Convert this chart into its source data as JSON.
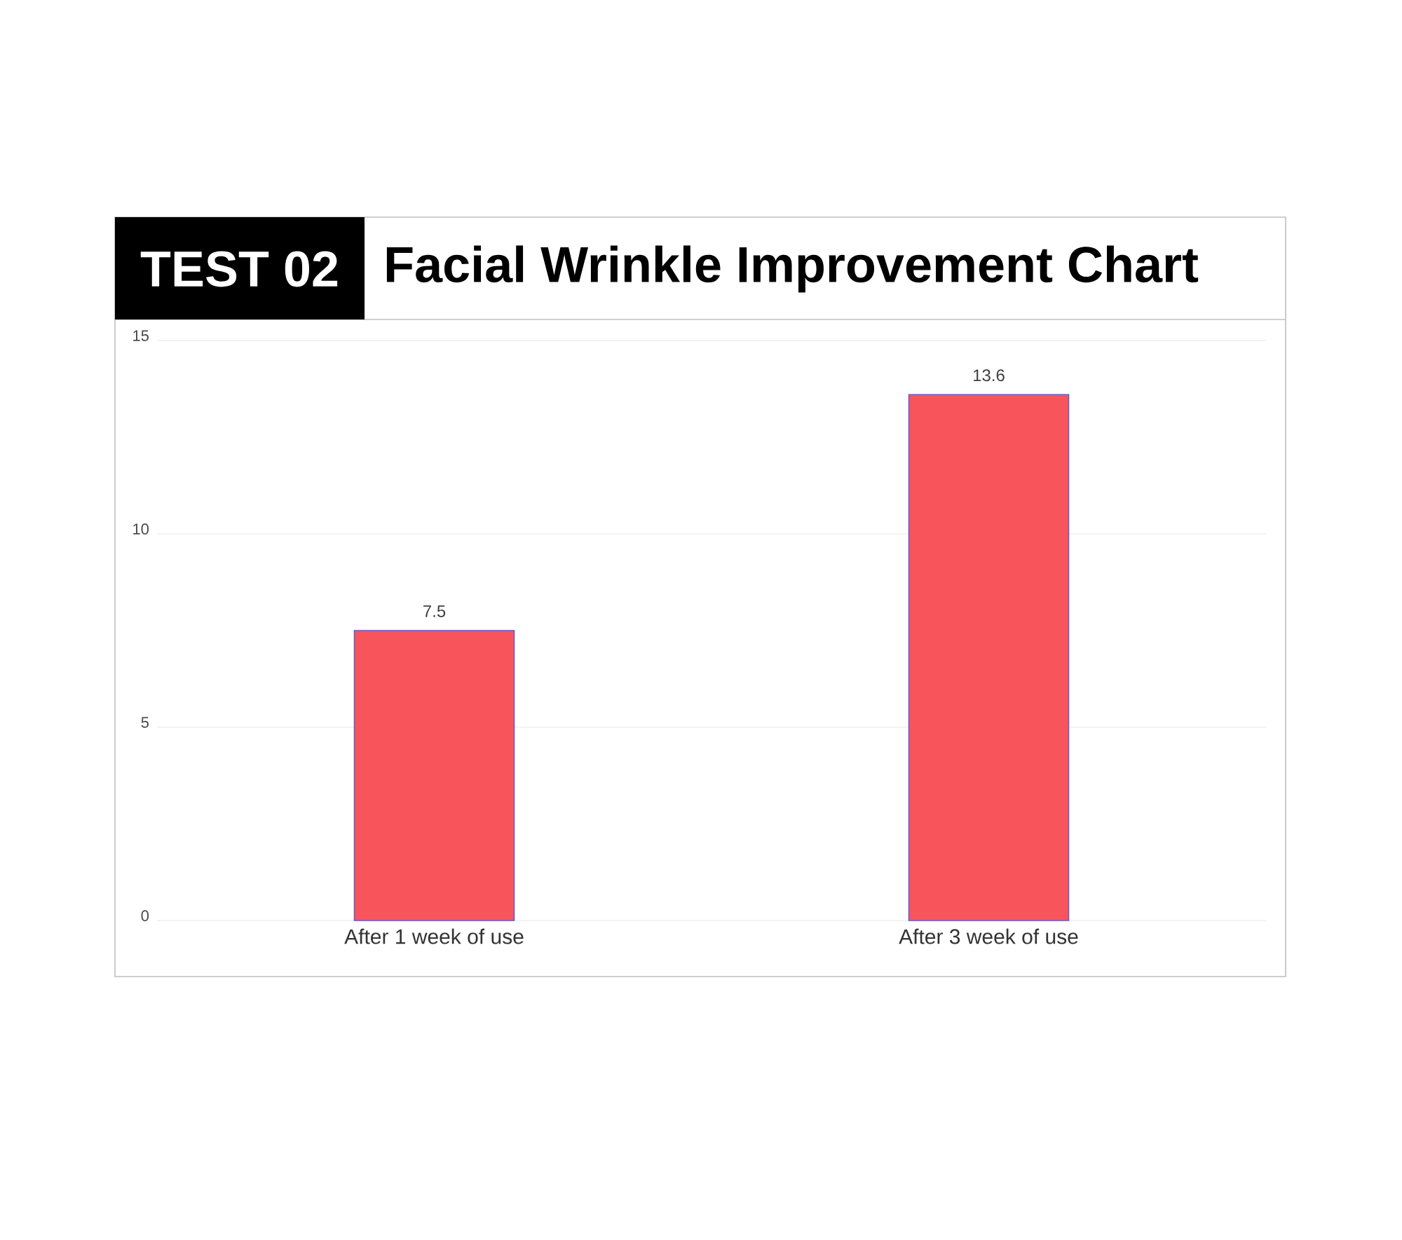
{
  "chart_data": {
    "type": "bar",
    "title": "TEST 02",
    "subtitle": "Facial Wrinkle Improvement Chart",
    "categories": [
      "After 1 week of use",
      "After 3 week of use"
    ],
    "values": [
      7.5,
      13.6
    ],
    "color": "#f8545c",
    "ylim": [
      0,
      15
    ],
    "yticks": [
      0,
      5,
      10,
      15
    ],
    "grid": "y",
    "data_labels": true
  }
}
